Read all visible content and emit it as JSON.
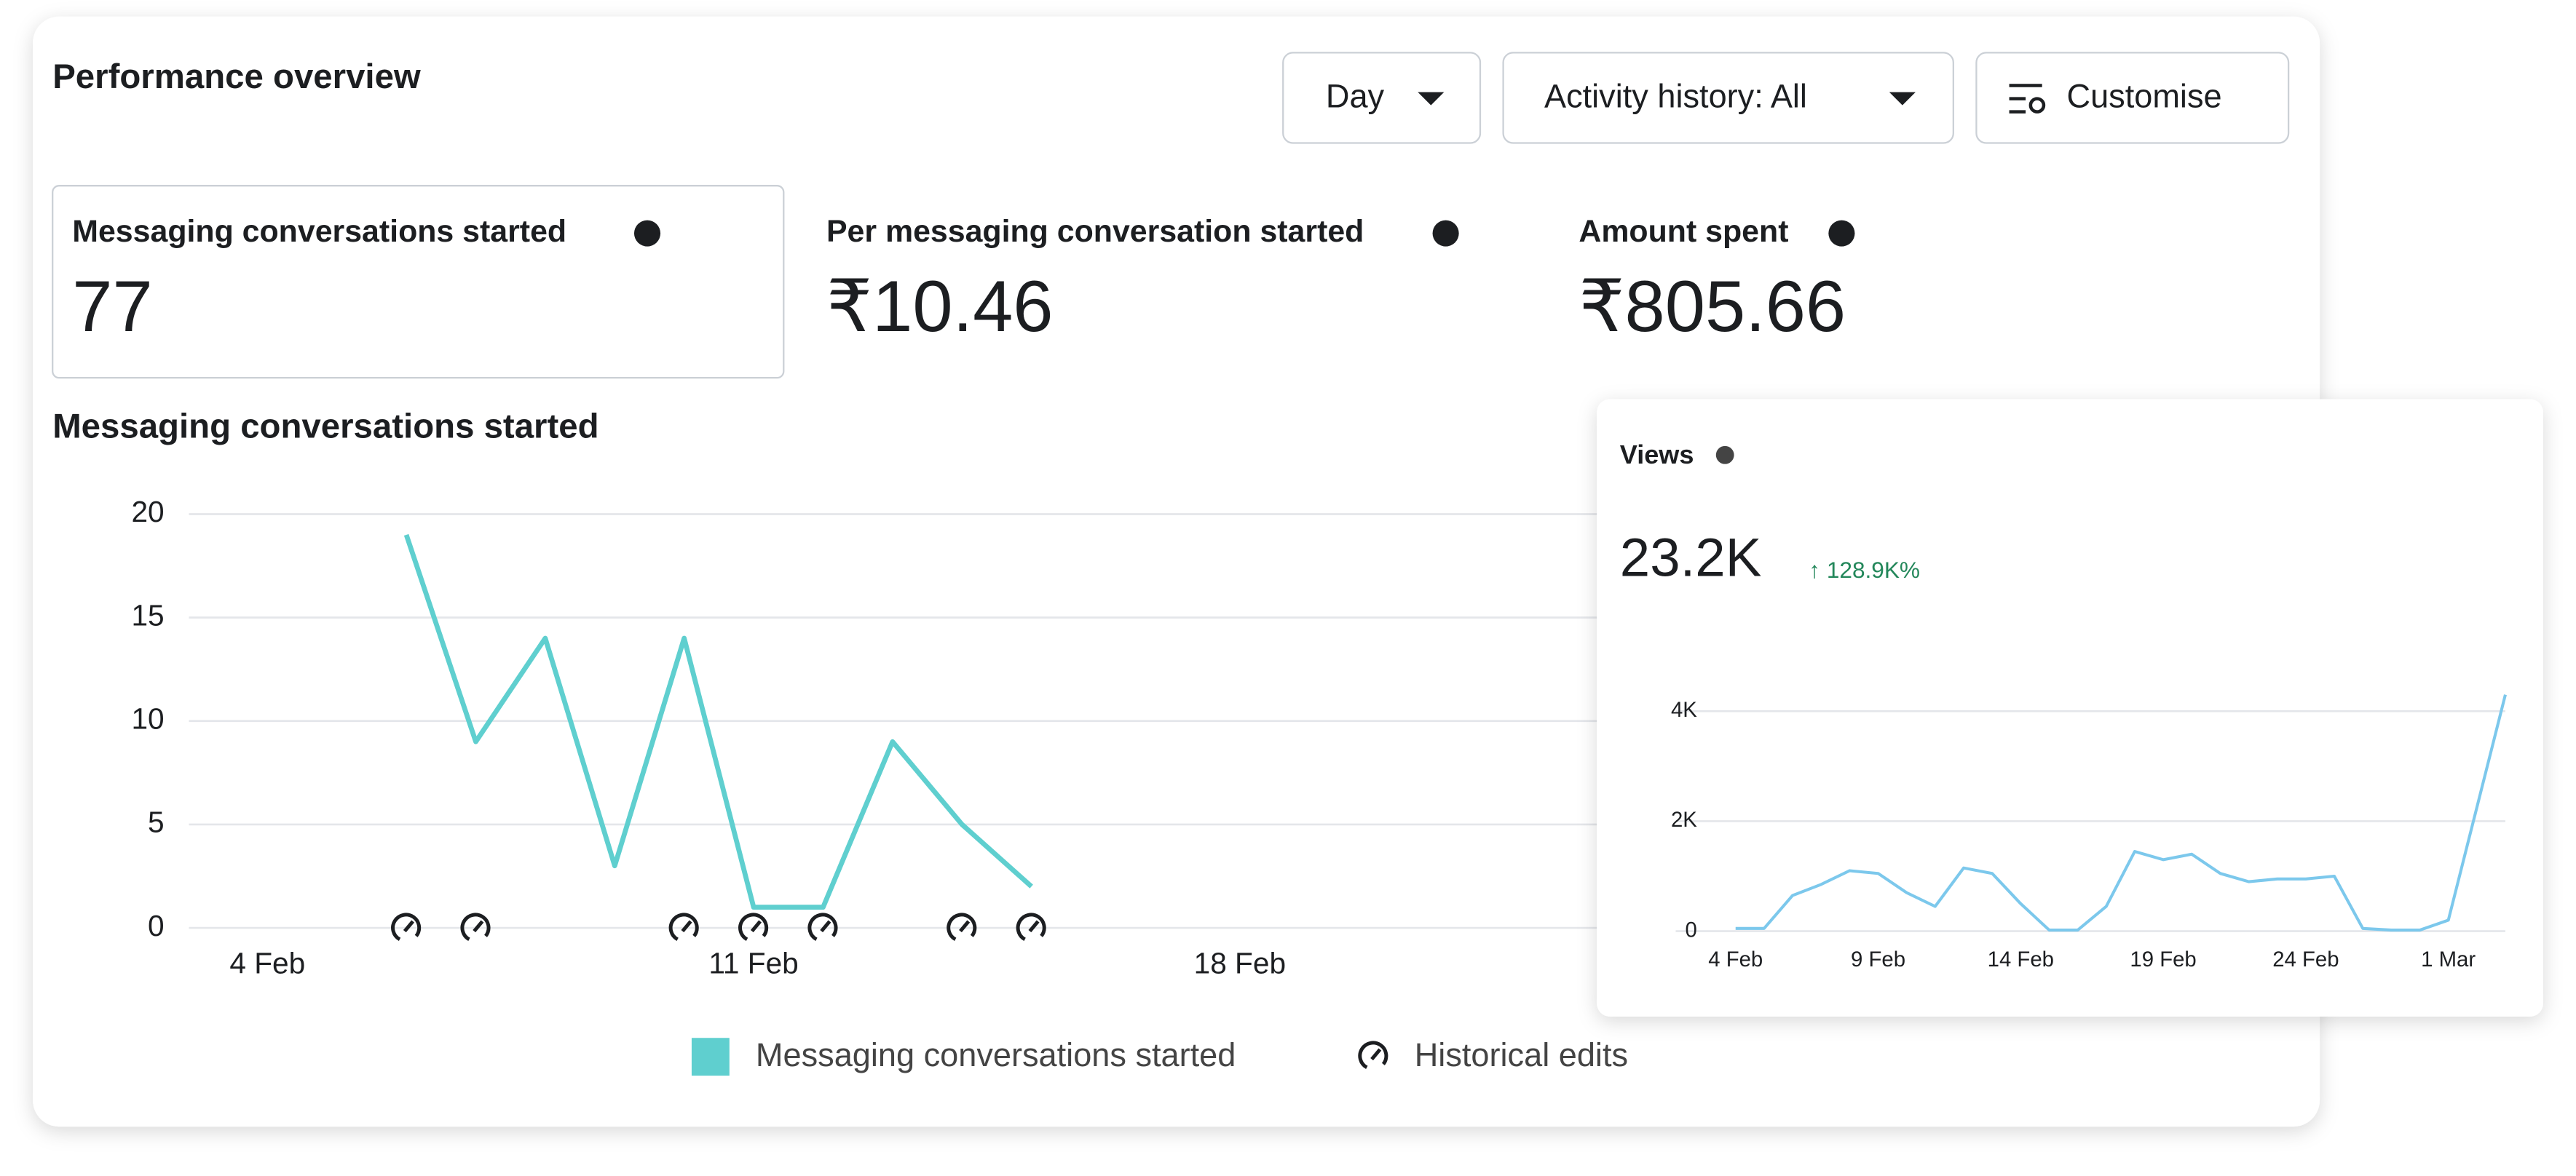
{
  "header": {
    "title": "Performance overview"
  },
  "buttons": [
    "Day",
    "Activity history: All",
    "Customise"
  ],
  "metrics": [
    {
      "label": "Messaging conversations started",
      "value": "77"
    },
    {
      "label": "Per messaging conversation started",
      "value": "₹10.46"
    },
    {
      "label": "Amount spent",
      "value": "₹805.66"
    }
  ],
  "chart_data": [
    {
      "type": "line",
      "title": "Messaging conversations started",
      "x": [
        6,
        7,
        8,
        9,
        10,
        11,
        12,
        13,
        14,
        15
      ],
      "series": [
        {
          "name": "Messaging conversations started",
          "color": "#5fcfcf",
          "values": [
            19,
            9,
            14,
            3,
            14,
            1,
            1,
            9,
            5,
            2
          ]
        }
      ],
      "historical_edits": {
        "name": "Historical edits",
        "x": [
          6,
          7,
          10,
          11,
          12,
          14,
          15
        ]
      },
      "xlim": [
        2.87,
        33.5
      ],
      "xticks": [
        {
          "value": 4,
          "label": "4 Feb"
        },
        {
          "value": 11,
          "label": "11 Feb"
        },
        {
          "value": 18,
          "label": "18 Feb"
        }
      ],
      "ylim": [
        0,
        20
      ],
      "yticks": [
        0,
        5,
        10,
        15,
        20
      ],
      "grid": true,
      "legend": "bottom"
    },
    {
      "type": "line",
      "title": "Views",
      "headline": "23.2K",
      "change": "↑ 128.9K%",
      "x": [
        4,
        5,
        6,
        7,
        8,
        9,
        10,
        11,
        12,
        13,
        14,
        15,
        16,
        17,
        18,
        19,
        20,
        21,
        22,
        23,
        24,
        25,
        26,
        27,
        28,
        29,
        30,
        31
      ],
      "values": [
        50,
        50,
        650,
        850,
        1100,
        1050,
        700,
        450,
        1150,
        1050,
        500,
        20,
        20,
        450,
        1450,
        1300,
        1400,
        1050,
        900,
        950,
        950,
        1000,
        50,
        20,
        20,
        200,
        2250,
        4300
      ],
      "color": "#7cc8ec",
      "xlim": [
        1.9,
        31
      ],
      "xticks": [
        {
          "value": 4,
          "label": "4 Feb"
        },
        {
          "value": 9,
          "label": "9 Feb"
        },
        {
          "value": 14,
          "label": "14 Feb"
        },
        {
          "value": 19,
          "label": "19 Feb"
        },
        {
          "value": 24,
          "label": "24 Feb"
        },
        {
          "value": 29,
          "label": "1 Mar"
        }
      ],
      "ylim": [
        0,
        4300
      ],
      "yticks": [
        0,
        {
          "value": 2000,
          "label": "2K"
        },
        {
          "value": 4000,
          "label": "4K"
        }
      ],
      "grid": true
    }
  ]
}
